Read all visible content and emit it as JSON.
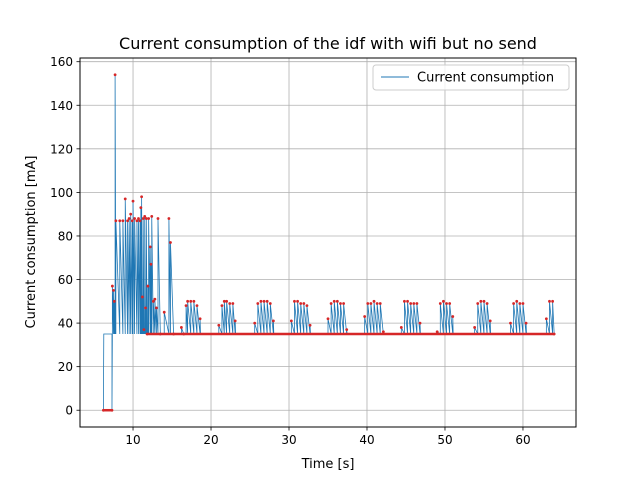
{
  "chart_data": {
    "type": "line",
    "title": "Current consumption of the idf with wifi but no send",
    "xlabel": "Time [s]",
    "ylabel": "Current consumption [mA]",
    "xlim": [
      3.2,
      66.8
    ],
    "ylim": [
      -7.7,
      161.7
    ],
    "xticks": [
      10,
      20,
      30,
      40,
      50,
      60
    ],
    "yticks": [
      0,
      20,
      40,
      60,
      80,
      100,
      120,
      140,
      160
    ],
    "grid": true,
    "legend_position": "top-right",
    "series": [
      {
        "name": "Current consumption",
        "color": "#1f77b4",
        "marker_color": "#d62728",
        "baseline": 35,
        "points": [
          [
            6.2,
            0
          ],
          [
            7.3,
            0
          ],
          [
            7.35,
            57
          ],
          [
            7.5,
            55
          ],
          [
            7.6,
            50
          ],
          [
            7.7,
            154
          ],
          [
            7.8,
            87
          ],
          [
            8.3,
            87
          ],
          [
            8.7,
            87
          ],
          [
            9.0,
            97
          ],
          [
            9.3,
            87
          ],
          [
            9.5,
            88
          ],
          [
            9.7,
            90
          ],
          [
            9.9,
            87
          ],
          [
            10.0,
            96
          ],
          [
            10.2,
            88
          ],
          [
            10.5,
            87
          ],
          [
            10.7,
            88
          ],
          [
            10.9,
            87
          ],
          [
            11.0,
            93
          ],
          [
            11.1,
            98
          ],
          [
            11.2,
            52
          ],
          [
            11.3,
            88
          ],
          [
            11.4,
            37
          ],
          [
            11.5,
            89
          ],
          [
            11.6,
            47
          ],
          [
            11.7,
            88
          ],
          [
            11.8,
            35
          ],
          [
            11.9,
            57
          ],
          [
            12.0,
            88
          ],
          [
            12.2,
            75
          ],
          [
            12.3,
            67
          ],
          [
            12.4,
            89
          ],
          [
            12.6,
            50
          ],
          [
            12.8,
            51
          ],
          [
            13.0,
            47
          ],
          [
            13.2,
            88
          ],
          [
            13.5,
            35
          ],
          [
            14.0,
            45
          ],
          [
            14.6,
            88
          ],
          [
            14.8,
            77
          ],
          [
            15.2,
            35
          ],
          [
            16.2,
            38
          ],
          [
            16.5,
            35
          ],
          [
            16.8,
            48
          ],
          [
            17.0,
            50
          ],
          [
            17.4,
            50
          ],
          [
            17.8,
            50
          ],
          [
            18.2,
            48
          ],
          [
            18.6,
            42
          ],
          [
            21.0,
            39
          ],
          [
            21.4,
            48
          ],
          [
            21.7,
            50
          ],
          [
            22.0,
            50
          ],
          [
            22.4,
            49
          ],
          [
            22.8,
            49
          ],
          [
            23.1,
            41
          ],
          [
            25.6,
            40
          ],
          [
            26.0,
            49
          ],
          [
            26.4,
            50
          ],
          [
            26.8,
            50
          ],
          [
            27.2,
            50
          ],
          [
            27.6,
            49
          ],
          [
            28.0,
            41
          ],
          [
            30.3,
            41
          ],
          [
            30.7,
            50
          ],
          [
            31.1,
            50
          ],
          [
            31.5,
            49
          ],
          [
            31.9,
            49
          ],
          [
            32.3,
            48
          ],
          [
            32.7,
            39
          ],
          [
            35.0,
            42
          ],
          [
            35.4,
            49
          ],
          [
            35.8,
            50
          ],
          [
            36.2,
            50
          ],
          [
            36.6,
            49
          ],
          [
            37.0,
            49
          ],
          [
            37.4,
            37
          ],
          [
            39.7,
            43
          ],
          [
            40.1,
            49
          ],
          [
            40.5,
            49
          ],
          [
            40.9,
            50
          ],
          [
            41.3,
            49
          ],
          [
            41.7,
            49
          ],
          [
            42.1,
            36
          ],
          [
            44.4,
            38
          ],
          [
            44.8,
            50
          ],
          [
            45.2,
            50
          ],
          [
            45.6,
            49
          ],
          [
            46.0,
            49
          ],
          [
            46.4,
            49
          ],
          [
            46.8,
            40
          ],
          [
            49.0,
            36
          ],
          [
            49.4,
            49
          ],
          [
            49.8,
            50
          ],
          [
            50.2,
            49
          ],
          [
            50.6,
            49
          ],
          [
            51.0,
            43
          ],
          [
            53.8,
            38
          ],
          [
            54.2,
            49
          ],
          [
            54.6,
            50
          ],
          [
            55.0,
            50
          ],
          [
            55.4,
            49
          ],
          [
            55.8,
            41
          ],
          [
            58.4,
            40
          ],
          [
            58.8,
            49
          ],
          [
            59.2,
            50
          ],
          [
            59.6,
            49
          ],
          [
            60.0,
            49
          ],
          [
            60.4,
            40
          ],
          [
            63.0,
            42
          ],
          [
            63.4,
            50
          ],
          [
            63.8,
            50
          ],
          [
            64.0,
            35
          ]
        ]
      }
    ]
  }
}
